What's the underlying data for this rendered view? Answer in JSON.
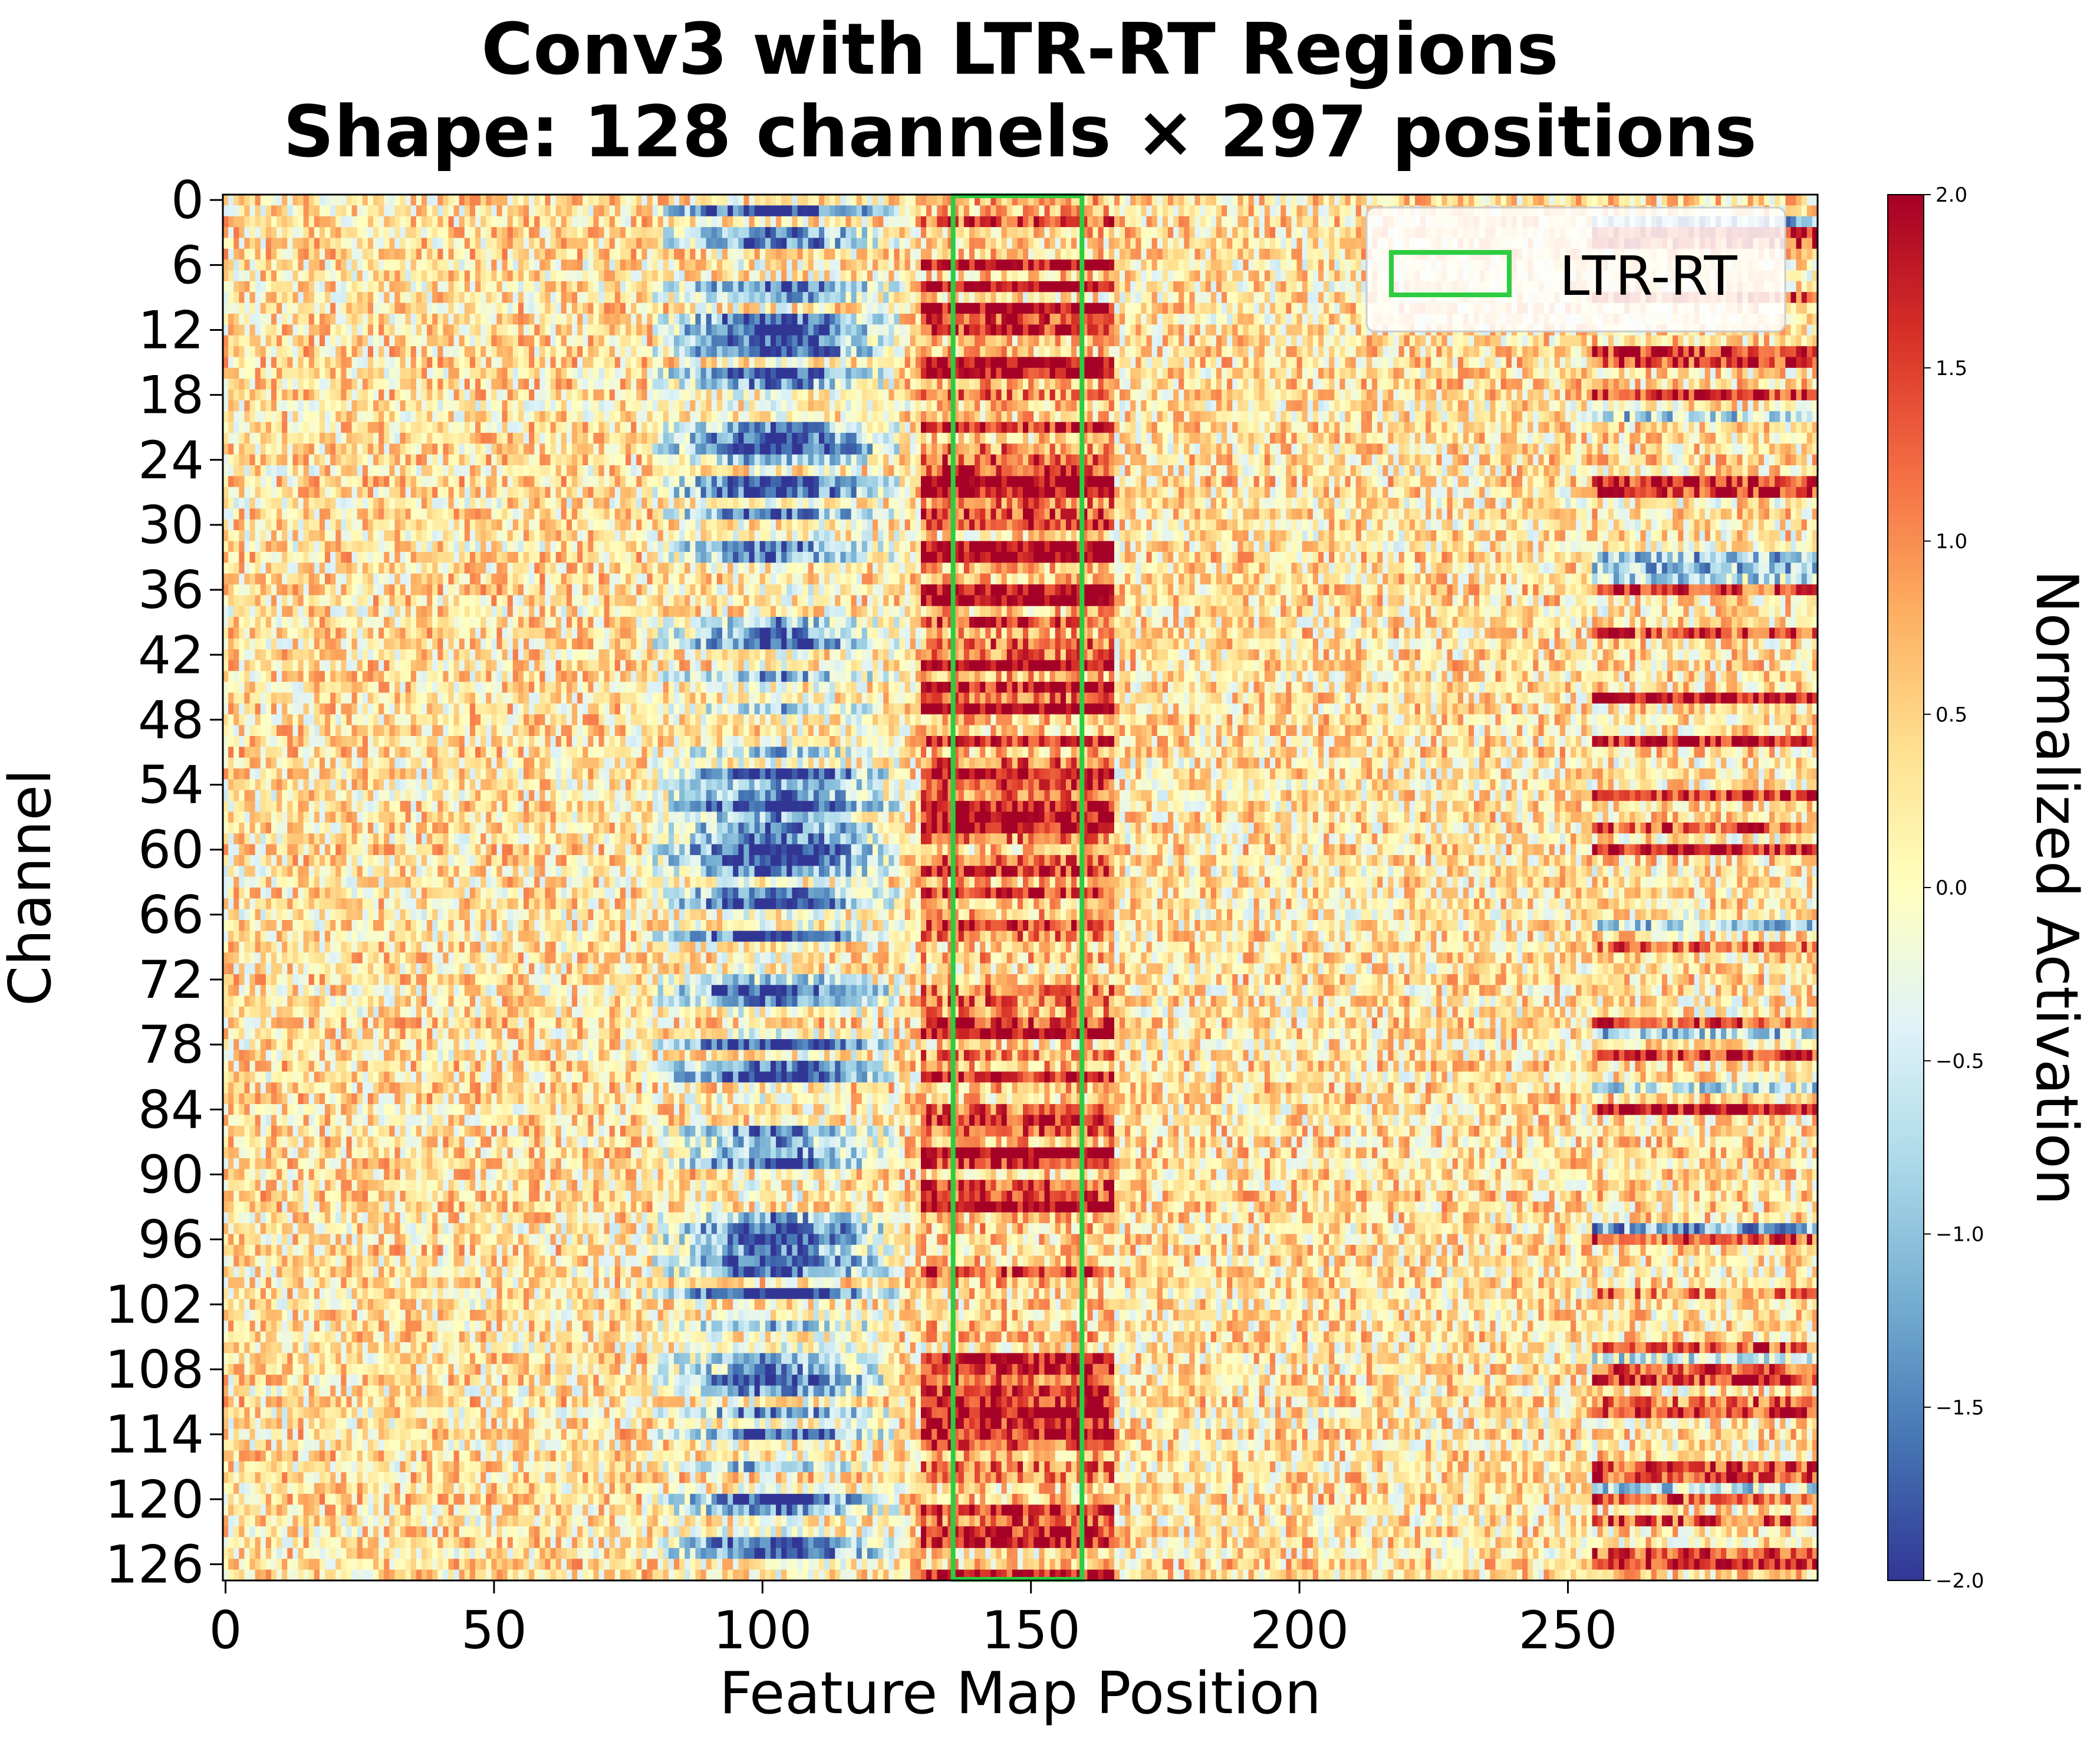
{
  "chart_data": {
    "type": "heatmap",
    "title_lines": [
      "Conv3 with LTR-RT Regions",
      "Shape: 128 channels × 297 positions"
    ],
    "xlabel": "Feature Map Position",
    "ylabel": "Channel",
    "colorbar_label": "Normalized Activation",
    "n_channels": 128,
    "n_positions": 297,
    "xlim": [
      -0.5,
      296.5
    ],
    "ylim": [
      127.5,
      -0.5
    ],
    "x_ticks": [
      0,
      50,
      100,
      150,
      200,
      250
    ],
    "x_tick_labels": [
      "0",
      "50",
      "100",
      "150",
      "200",
      "250"
    ],
    "y_ticks": [
      0,
      6,
      12,
      18,
      24,
      30,
      36,
      42,
      48,
      54,
      60,
      66,
      72,
      78,
      84,
      90,
      96,
      102,
      108,
      114,
      120,
      126
    ],
    "y_tick_labels": [
      "0",
      "6",
      "12",
      "18",
      "24",
      "30",
      "36",
      "42",
      "48",
      "54",
      "60",
      "66",
      "72",
      "78",
      "84",
      "90",
      "96",
      "102",
      "108",
      "114",
      "120",
      "126"
    ],
    "colormap": "RdYlBu_r",
    "vmin": -2.0,
    "vmax": 2.0,
    "colorbar_ticks": [
      2.0,
      1.5,
      1.0,
      0.5,
      0.0,
      -0.5,
      -1.0,
      -1.5,
      -2.0
    ],
    "colorbar_tick_labels": [
      "2.0",
      "1.5",
      "1.0",
      "0.5",
      "0.0",
      "−0.5",
      "−1.0",
      "−1.5",
      "−2.0"
    ],
    "regions": [
      {
        "name": "LTR-RT",
        "x_start": 136,
        "x_end": 159,
        "color": "#2ecc40"
      }
    ],
    "legend": {
      "entries": [
        "LTR-RT"
      ],
      "placement": "top-right"
    },
    "pattern": {
      "negative_band": {
        "x_range": [
          80,
          125
        ],
        "value": -1.6
      },
      "positive_band": {
        "x_range": [
          130,
          165
        ],
        "value": 1.6
      },
      "right_activity": {
        "x_range": [
          255,
          296
        ],
        "value": 1.3
      }
    }
  }
}
